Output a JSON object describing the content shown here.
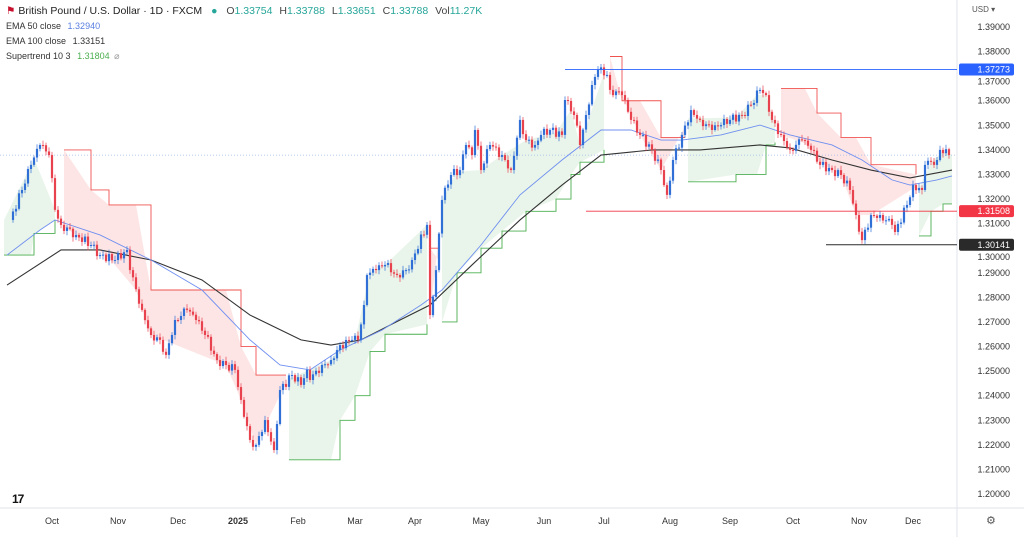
{
  "header": {
    "symbol_title": "British Pound / U.S. Dollar · 1D · FXCM",
    "o_label": "O",
    "o": "1.33754",
    "h_label": "H",
    "h": "1.33788",
    "l_label": "L",
    "l": "1.33651",
    "c_label": "C",
    "c": "1.33788",
    "vol_label": "Vol",
    "vol": "11.27K"
  },
  "indicators": [
    {
      "label": "EMA 50 close",
      "value": "1.32940",
      "color": "#5b7fe0"
    },
    {
      "label": "EMA 100 close",
      "value": "1.33151",
      "color": "#222222"
    },
    {
      "label": "Supertrend 10 3",
      "value": "1.31804",
      "color": "#4caf50"
    }
  ],
  "currency": "USD",
  "colors": {
    "up": "#2f6fd6",
    "down": "#e8424f",
    "ema50": "#6f8ff0",
    "ema100": "#333333",
    "st_up": "#4caf50",
    "st_down": "#ef5350"
  },
  "chart_data": {
    "type": "candlestick",
    "title": "British Pound / U.S. Dollar · 1D · FXCM",
    "ylim": [
      1.195,
      1.393
    ],
    "yticks": [
      "1.20000",
      "1.21000",
      "1.22000",
      "1.23000",
      "1.24000",
      "1.25000",
      "1.26000",
      "1.27000",
      "1.28000",
      "1.29000",
      "1.30000",
      "1.31000",
      "1.32000",
      "1.33000",
      "1.34000",
      "1.35000",
      "1.36000",
      "1.37000",
      "1.38000",
      "1.39000"
    ],
    "xticks": [
      {
        "d": 17,
        "label": "Oct"
      },
      {
        "d": 39,
        "label": "Nov"
      },
      {
        "d": 59,
        "label": "Dec"
      },
      {
        "d": 79,
        "label": "2025"
      },
      {
        "d": 99,
        "label": "Feb"
      },
      {
        "d": 118,
        "label": "Mar"
      },
      {
        "d": 138,
        "label": "Apr"
      },
      {
        "d": 160,
        "label": "May"
      },
      {
        "d": 181,
        "label": "Jun"
      },
      {
        "d": 201,
        "label": "Jul"
      },
      {
        "d": 223,
        "label": "Aug"
      },
      {
        "d": 243,
        "label": "Sep"
      },
      {
        "d": 264,
        "label": "Oct"
      },
      {
        "d": 286,
        "label": "Nov"
      },
      {
        "d": 304,
        "label": "Dec"
      }
    ],
    "closes": [
      [
        3,
        1.3115
      ],
      [
        7,
        1.3237
      ],
      [
        10,
        1.3339
      ],
      [
        13,
        1.342
      ],
      [
        16,
        1.3379
      ],
      [
        18,
        1.3156
      ],
      [
        20,
        1.3095
      ],
      [
        25,
        1.3054
      ],
      [
        30,
        1.3013
      ],
      [
        33,
        1.2972
      ],
      [
        38,
        1.2952
      ],
      [
        42,
        1.2993
      ],
      [
        43,
        1.2911
      ],
      [
        47,
        1.2749
      ],
      [
        50,
        1.2647
      ],
      [
        53,
        1.2627
      ],
      [
        55,
        1.2566
      ],
      [
        58,
        1.2708
      ],
      [
        62,
        1.2749
      ],
      [
        65,
        1.2708
      ],
      [
        68,
        1.2647
      ],
      [
        72,
        1.2545
      ],
      [
        75,
        1.2525
      ],
      [
        78,
        1.2505
      ],
      [
        80,
        1.2383
      ],
      [
        83,
        1.222
      ],
      [
        85,
        1.22
      ],
      [
        88,
        1.2301
      ],
      [
        91,
        1.2179
      ],
      [
        93,
        1.2423
      ],
      [
        97,
        1.2484
      ],
      [
        100,
        1.2444
      ],
      [
        102,
        1.2505
      ],
      [
        103,
        1.2464
      ],
      [
        107,
        1.2525
      ],
      [
        110,
        1.2545
      ],
      [
        113,
        1.2606
      ],
      [
        117,
        1.2627
      ],
      [
        119,
        1.2627
      ],
      [
        121,
        1.2769
      ],
      [
        122,
        1.2891
      ],
      [
        125,
        1.2911
      ],
      [
        128,
        1.2932
      ],
      [
        132,
        1.2891
      ],
      [
        135,
        1.2911
      ],
      [
        137,
        1.2952
      ],
      [
        142,
        1.3095
      ],
      [
        143,
        1.2728
      ],
      [
        145,
        1.2911
      ],
      [
        147,
        1.3196
      ],
      [
        150,
        1.3298
      ],
      [
        153,
        1.3318
      ],
      [
        155,
        1.342
      ],
      [
        157,
        1.3379
      ],
      [
        158,
        1.3481
      ],
      [
        160,
        1.3318
      ],
      [
        163,
        1.342
      ],
      [
        167,
        1.3379
      ],
      [
        170,
        1.3318
      ],
      [
        173,
        1.3522
      ],
      [
        175,
        1.344
      ],
      [
        178,
        1.342
      ],
      [
        180,
        1.3461
      ],
      [
        183,
        1.3481
      ],
      [
        187,
        1.3461
      ],
      [
        188,
        1.3603
      ],
      [
        191,
        1.3542
      ],
      [
        193,
        1.342
      ],
      [
        195,
        1.3542
      ],
      [
        197,
        1.3664
      ],
      [
        199,
        1.3725
      ],
      [
        202,
        1.3705
      ],
      [
        203,
        1.3644
      ],
      [
        207,
        1.3623
      ],
      [
        210,
        1.3522
      ],
      [
        213,
        1.3461
      ],
      [
        217,
        1.34
      ],
      [
        220,
        1.3318
      ],
      [
        222,
        1.3217
      ],
      [
        224,
        1.3359
      ],
      [
        227,
        1.3461
      ],
      [
        230,
        1.3562
      ],
      [
        233,
        1.3522
      ],
      [
        237,
        1.3481
      ],
      [
        240,
        1.3501
      ],
      [
        243,
        1.3522
      ],
      [
        247,
        1.3542
      ],
      [
        250,
        1.3583
      ],
      [
        253,
        1.3644
      ],
      [
        255,
        1.3623
      ],
      [
        257,
        1.3522
      ],
      [
        260,
        1.3461
      ],
      [
        263,
        1.34
      ],
      [
        267,
        1.344
      ],
      [
        270,
        1.34
      ],
      [
        273,
        1.3339
      ],
      [
        277,
        1.3318
      ],
      [
        280,
        1.3298
      ],
      [
        283,
        1.3237
      ],
      [
        285,
        1.3135
      ],
      [
        287,
        1.3033
      ],
      [
        290,
        1.3135
      ],
      [
        293,
        1.3135
      ],
      [
        297,
        1.3095
      ],
      [
        298,
        1.3066
      ],
      [
        302,
        1.3176
      ],
      [
        304,
        1.3257
      ],
      [
        307,
        1.3237
      ],
      [
        308,
        1.3339
      ],
      [
        312,
        1.3359
      ],
      [
        313,
        1.34
      ],
      [
        316,
        1.3379
      ]
    ],
    "ema50": [
      [
        2,
        1.2972
      ],
      [
        13,
        1.3074
      ],
      [
        18,
        1.3115
      ],
      [
        33,
        1.3054
      ],
      [
        50,
        1.2952
      ],
      [
        67,
        1.283
      ],
      [
        83,
        1.2627
      ],
      [
        93,
        1.2525
      ],
      [
        103,
        1.2505
      ],
      [
        113,
        1.2586
      ],
      [
        127,
        1.2667
      ],
      [
        140,
        1.2769
      ],
      [
        147,
        1.283
      ],
      [
        160,
        1.3013
      ],
      [
        173,
        1.3217
      ],
      [
        187,
        1.3359
      ],
      [
        200,
        1.3481
      ],
      [
        210,
        1.3481
      ],
      [
        220,
        1.344
      ],
      [
        227,
        1.344
      ],
      [
        240,
        1.3461
      ],
      [
        253,
        1.3501
      ],
      [
        263,
        1.3461
      ],
      [
        277,
        1.342
      ],
      [
        287,
        1.3359
      ],
      [
        297,
        1.3278
      ],
      [
        303,
        1.3257
      ],
      [
        312,
        1.3278
      ],
      [
        317,
        1.3294
      ]
    ],
    "ema100": [
      [
        2,
        1.285
      ],
      [
        20,
        1.2993
      ],
      [
        33,
        1.2993
      ],
      [
        50,
        1.2952
      ],
      [
        67,
        1.2871
      ],
      [
        83,
        1.2728
      ],
      [
        100,
        1.2627
      ],
      [
        110,
        1.2606
      ],
      [
        120,
        1.2627
      ],
      [
        133,
        1.2708
      ],
      [
        143,
        1.2769
      ],
      [
        157,
        1.2932
      ],
      [
        173,
        1.3115
      ],
      [
        187,
        1.3257
      ],
      [
        200,
        1.3379
      ],
      [
        217,
        1.34
      ],
      [
        233,
        1.34
      ],
      [
        253,
        1.342
      ],
      [
        263,
        1.3408
      ],
      [
        277,
        1.3359
      ],
      [
        290,
        1.3318
      ],
      [
        303,
        1.3286
      ],
      [
        317,
        1.3318
      ]
    ],
    "supertrend": [
      {
        "trend": "up",
        "points": [
          [
            1,
            1.2972
          ],
          [
            10,
            1.2972
          ],
          [
            11,
            1.306
          ],
          [
            18,
            1.3115
          ]
        ]
      },
      {
        "trend": "down",
        "points": [
          [
            21,
            1.34
          ],
          [
            30,
            1.3237
          ],
          [
            36,
            1.3176
          ],
          [
            45,
            1.3176
          ],
          [
            50,
            1.283
          ],
          [
            75,
            1.283
          ],
          [
            80,
            1.26
          ],
          [
            85,
            1.2484
          ],
          [
            95,
            1.2484
          ]
        ]
      },
      {
        "trend": "up",
        "points": [
          [
            96,
            1.2139
          ],
          [
            110,
            1.2139
          ],
          [
            113,
            1.23
          ],
          [
            118,
            1.24
          ],
          [
            123,
            1.258
          ],
          [
            128,
            1.265
          ],
          [
            142,
            1.269
          ]
        ]
      },
      {
        "trend": "down",
        "points": [
          [
            143,
            1.3
          ],
          [
            146,
            1.295
          ]
        ]
      },
      {
        "trend": "up",
        "points": [
          [
            147,
            1.27
          ],
          [
            152,
            1.29
          ],
          [
            160,
            1.3
          ],
          [
            167,
            1.307
          ],
          [
            175,
            1.315
          ],
          [
            185,
            1.32
          ],
          [
            190,
            1.33
          ],
          [
            193,
            1.335
          ],
          [
            201,
            1.34
          ]
        ]
      },
      {
        "trend": "down",
        "points": [
          [
            203,
            1.378
          ],
          [
            207,
            1.36
          ],
          [
            213,
            1.36
          ],
          [
            220,
            1.345
          ],
          [
            228,
            1.345
          ]
        ]
      },
      {
        "trend": "up",
        "points": [
          [
            229,
            1.327
          ],
          [
            245,
            1.33
          ],
          [
            252,
            1.33
          ],
          [
            255,
            1.342
          ],
          [
            258,
            1.343
          ]
        ]
      },
      {
        "trend": "down",
        "points": [
          [
            260,
            1.365
          ],
          [
            268,
            1.365
          ],
          [
            272,
            1.355
          ],
          [
            280,
            1.345
          ],
          [
            285,
            1.345
          ],
          [
            290,
            1.334
          ],
          [
            305,
            1.33
          ]
        ]
      },
      {
        "trend": "up",
        "points": [
          [
            306,
            1.305
          ],
          [
            310,
            1.315
          ],
          [
            314,
            1.318
          ],
          [
            317,
            1.318
          ]
        ]
      }
    ],
    "levels": [
      {
        "price": 1.37273,
        "label": "1.37273",
        "from_d": 188,
        "color": "#2962ff",
        "text_color": "#ffffff"
      },
      {
        "price": 1.31508,
        "label": "1.31508",
        "from_d": 195,
        "color": "#f23645",
        "text_color": "#ffffff"
      },
      {
        "price": 1.30141,
        "label": "1.30141",
        "from_d": 275,
        "color": "#2a2a2a",
        "text_color": "#ffffff"
      }
    ],
    "last_price": 1.33788
  }
}
